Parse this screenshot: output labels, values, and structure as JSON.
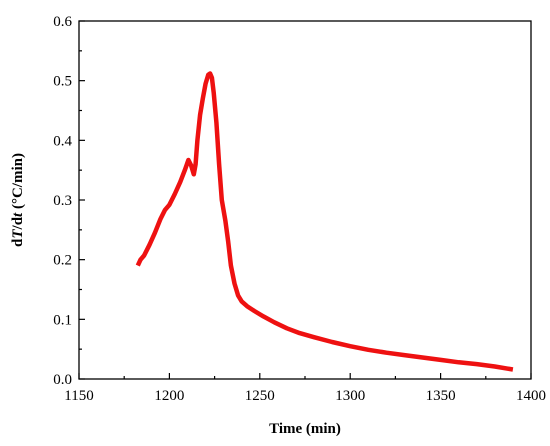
{
  "chart_data": {
    "type": "line",
    "xlabel": "Time (min)",
    "ylabel_parts": [
      "d",
      "T",
      "/d",
      "t",
      " (°C/min)"
    ],
    "xlim": [
      1150,
      1400
    ],
    "ylim": [
      0.0,
      0.6
    ],
    "x_ticks": [
      1150,
      1200,
      1250,
      1300,
      1350,
      1400
    ],
    "x_tick_labels": [
      "1150",
      "1200",
      "1250",
      "1300",
      "1350",
      "1400"
    ],
    "y_ticks": [
      0.0,
      0.1,
      0.2,
      0.3,
      0.4,
      0.5,
      0.6
    ],
    "y_tick_labels": [
      "0.0",
      "0.1",
      "0.2",
      "0.3",
      "0.4",
      "0.5",
      "0.6"
    ],
    "grid": false,
    "legend": "none",
    "series": [
      {
        "color": "#ee1111",
        "x": [
          1182.5,
          1184,
          1186,
          1189,
          1192,
          1195,
          1197.5,
          1200,
          1203,
          1206,
          1208.5,
          1210.5,
          1212,
          1213.5,
          1214.5,
          1215.5,
          1217,
          1218.5,
          1220,
          1221.5,
          1222.5,
          1223.5,
          1224.5,
          1226,
          1227.5,
          1229,
          1231,
          1232.5,
          1234,
          1236,
          1238,
          1240,
          1243,
          1247,
          1252,
          1258,
          1265,
          1272,
          1280,
          1290,
          1300,
          1310,
          1320,
          1330,
          1340,
          1350,
          1360,
          1370,
          1380,
          1390
        ],
        "y": [
          0.19,
          0.2,
          0.207,
          0.225,
          0.245,
          0.268,
          0.283,
          0.292,
          0.31,
          0.33,
          0.35,
          0.367,
          0.358,
          0.343,
          0.36,
          0.4,
          0.443,
          0.47,
          0.495,
          0.51,
          0.512,
          0.505,
          0.48,
          0.43,
          0.36,
          0.3,
          0.265,
          0.23,
          0.19,
          0.16,
          0.14,
          0.13,
          0.122,
          0.114,
          0.105,
          0.095,
          0.085,
          0.077,
          0.07,
          0.062,
          0.055,
          0.049,
          0.044,
          0.04,
          0.036,
          0.032,
          0.028,
          0.025,
          0.021,
          0.016
        ]
      }
    ]
  }
}
